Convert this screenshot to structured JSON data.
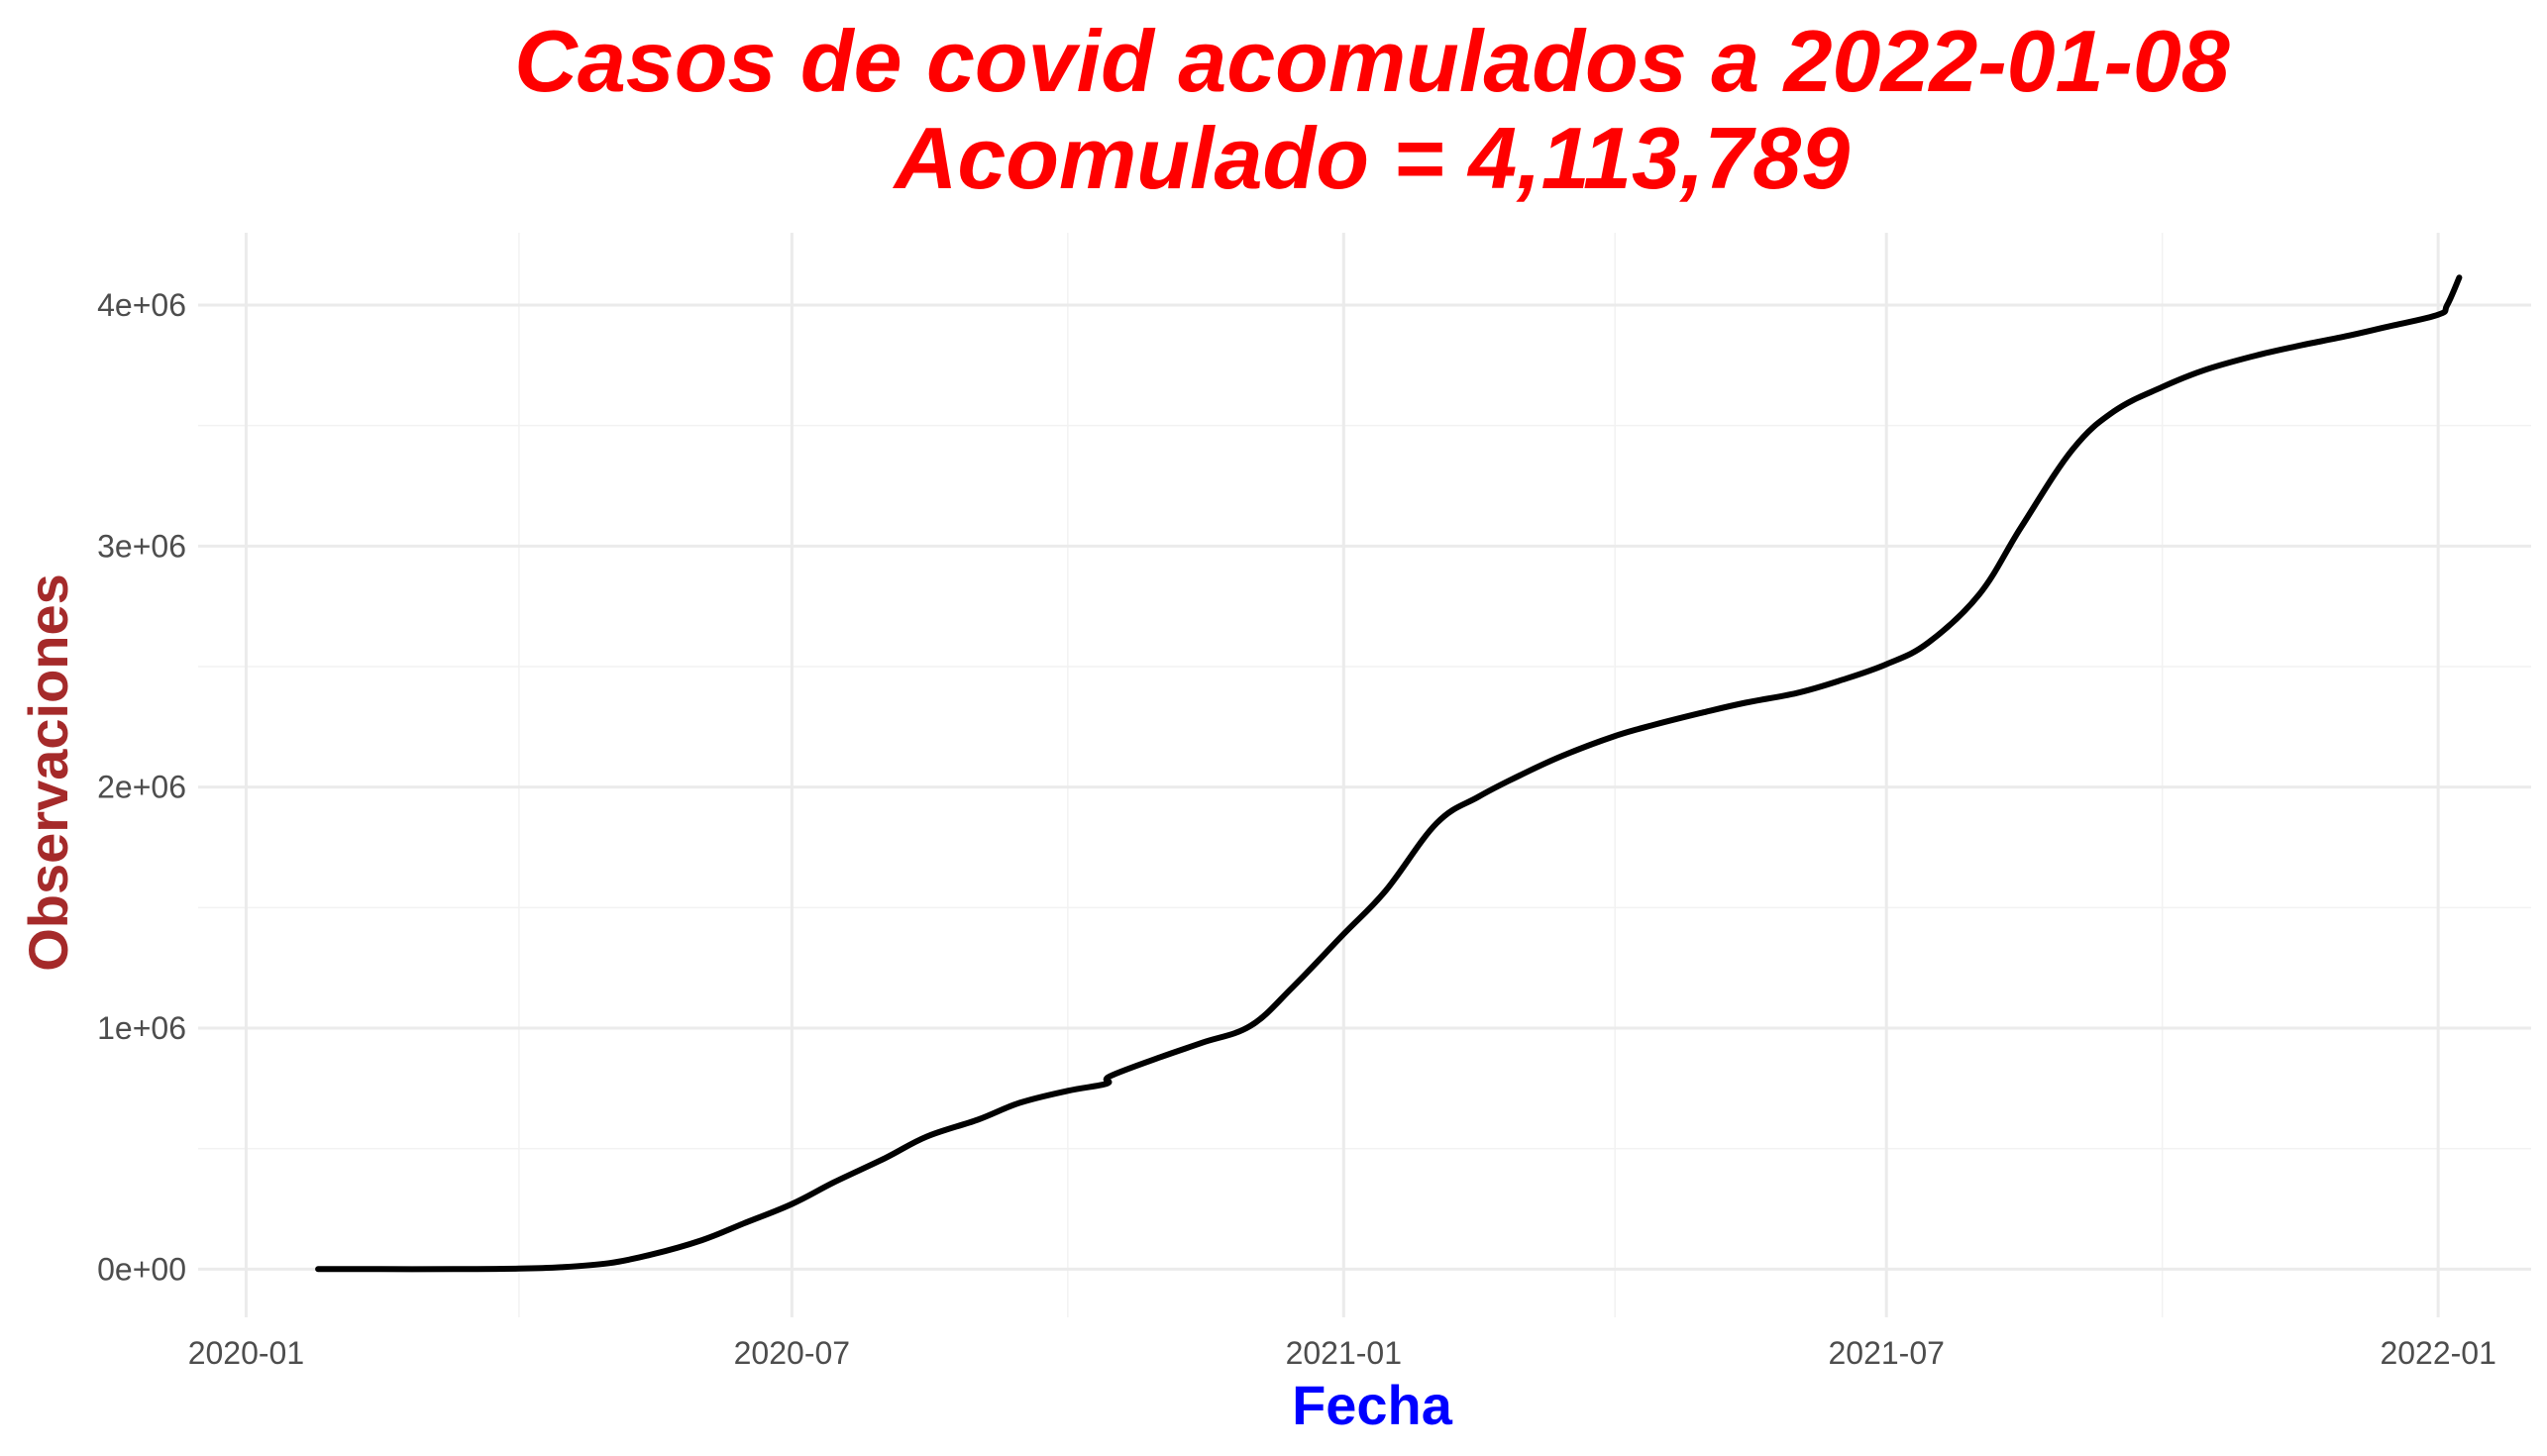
{
  "chart_data": {
    "type": "line",
    "title": "Casos de covid acomulados a 2022-01-08",
    "subtitle": "Acomulado = 4,113,789",
    "xlabel": "Fecha",
    "ylabel": "Observaciones",
    "xlim": [
      "2019-12-16",
      "2022-02-01"
    ],
    "ylim": [
      -200000,
      4300000
    ],
    "x_ticks": [
      "2020-01-01",
      "2020-07-01",
      "2021-01-01",
      "2021-07-01",
      "2022-01-01"
    ],
    "x_tick_labels": [
      "2020-01",
      "2020-07",
      "2021-01",
      "2021-07",
      "2022-01"
    ],
    "y_ticks": [
      0,
      1000000,
      2000000,
      3000000,
      4000000
    ],
    "y_tick_labels": [
      "0e+00",
      "1e+06",
      "2e+06",
      "3e+06",
      "4e+06"
    ],
    "grid": true,
    "legend": "none",
    "line_color": "#000000",
    "title_color": "#ff0000",
    "xlabel_color": "#0000ff",
    "ylabel_color": "#a52a2a",
    "series": [
      {
        "x": [
          "2020-01-25",
          "2020-02-15",
          "2020-03-10",
          "2020-04-01",
          "2020-04-15",
          "2020-05-01",
          "2020-05-15",
          "2020-06-01",
          "2020-06-15",
          "2020-07-01",
          "2020-07-15",
          "2020-08-01",
          "2020-08-15",
          "2020-09-01",
          "2020-09-15",
          "2020-10-01",
          "2020-10-14",
          "2020-10-15",
          "2020-11-01",
          "2020-11-15",
          "2020-12-01",
          "2020-12-15",
          "2021-01-01",
          "2021-01-15",
          "2021-02-01",
          "2021-02-15",
          "2021-03-01",
          "2021-03-15",
          "2021-04-01",
          "2021-04-15",
          "2021-05-01",
          "2021-05-15",
          "2021-06-01",
          "2021-06-15",
          "2021-07-01",
          "2021-07-15",
          "2021-08-01",
          "2021-08-15",
          "2021-09-01",
          "2021-09-15",
          "2021-10-01",
          "2021-10-15",
          "2021-11-01",
          "2021-11-15",
          "2021-12-01",
          "2021-12-15",
          "2022-01-01",
          "2022-01-04",
          "2022-01-08"
        ],
        "values": [
          0,
          0,
          0,
          2000,
          8000,
          25000,
          60000,
          120000,
          190000,
          270000,
          360000,
          460000,
          550000,
          620000,
          690000,
          740000,
          770000,
          800000,
          880000,
          940000,
          1010000,
          1170000,
          1390000,
          1570000,
          1850000,
          1960000,
          2050000,
          2130000,
          2210000,
          2260000,
          2310000,
          2350000,
          2390000,
          2440000,
          2510000,
          2600000,
          2800000,
          3080000,
          3400000,
          3560000,
          3660000,
          3730000,
          3790000,
          3830000,
          3870000,
          3910000,
          3960000,
          4000000,
          4113789
        ]
      }
    ]
  }
}
